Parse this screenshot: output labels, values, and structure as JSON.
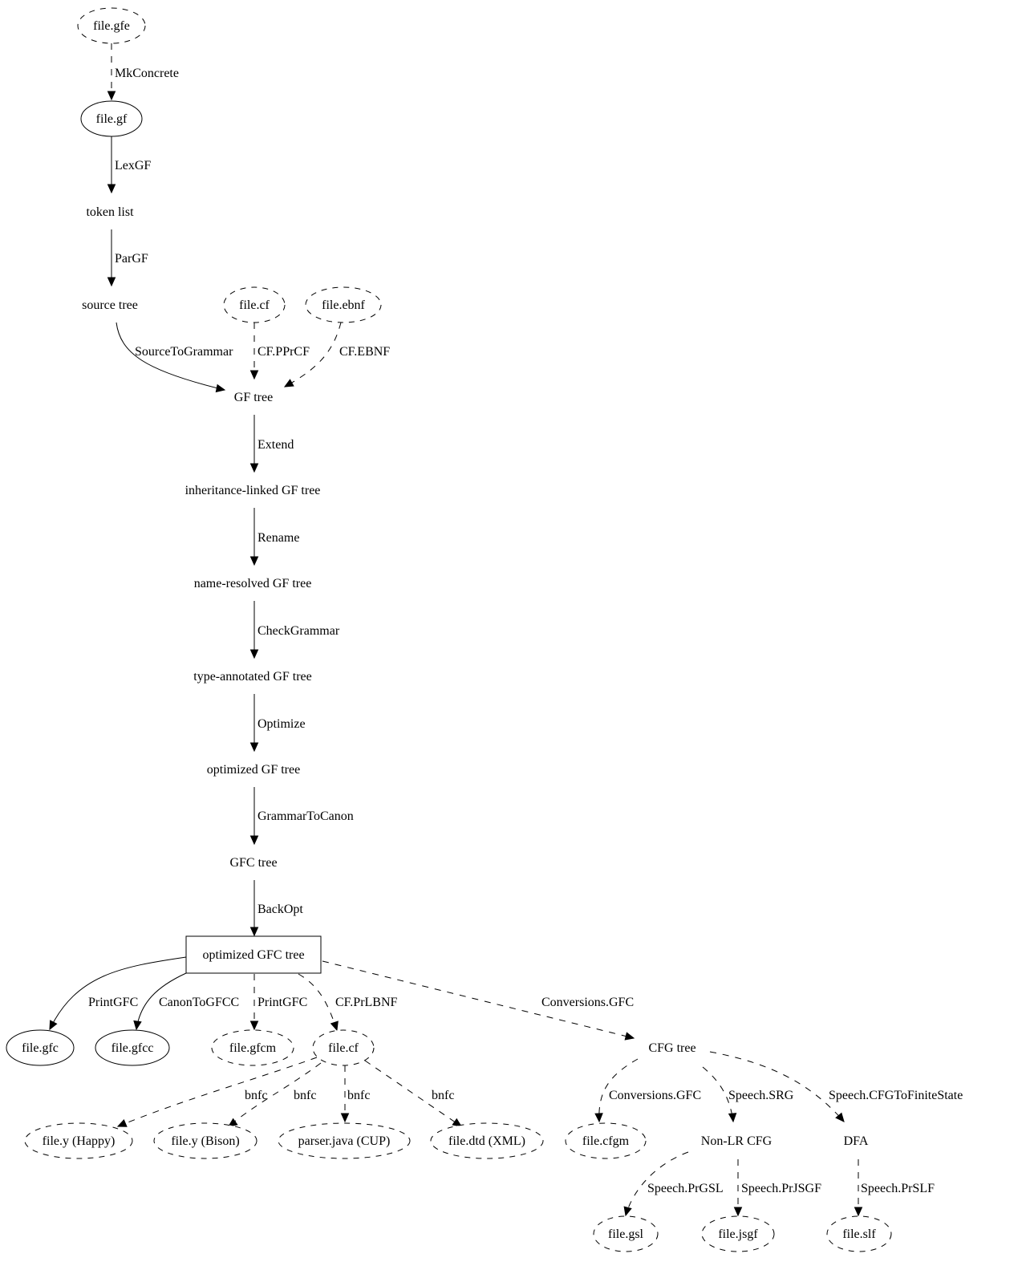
{
  "nodes": [
    {
      "id": "gfe",
      "label": "file.gfe",
      "shape": "ellipse",
      "dashed": true
    },
    {
      "id": "gf",
      "label": "file.gf",
      "shape": "ellipse",
      "dashed": false
    },
    {
      "id": "tokens",
      "label": "token list",
      "shape": "plain"
    },
    {
      "id": "source",
      "label": "source tree",
      "shape": "plain"
    },
    {
      "id": "cf_in",
      "label": "file.cf",
      "shape": "ellipse",
      "dashed": true
    },
    {
      "id": "ebnf",
      "label": "file.ebnf",
      "shape": "ellipse",
      "dashed": true
    },
    {
      "id": "gftree",
      "label": "GF tree",
      "shape": "plain"
    },
    {
      "id": "inh",
      "label": "inheritance-linked GF tree",
      "shape": "plain"
    },
    {
      "id": "named",
      "label": "name-resolved GF tree",
      "shape": "plain"
    },
    {
      "id": "typed",
      "label": "type-annotated GF tree",
      "shape": "plain"
    },
    {
      "id": "optgf",
      "label": "optimized GF tree",
      "shape": "plain"
    },
    {
      "id": "gfc",
      "label": "GFC tree",
      "shape": "plain"
    },
    {
      "id": "optgfc",
      "label": "optimized GFC tree",
      "shape": "box"
    },
    {
      "id": "fgfc",
      "label": "file.gfc",
      "shape": "ellipse",
      "dashed": false
    },
    {
      "id": "fgfcc",
      "label": "file.gfcc",
      "shape": "ellipse",
      "dashed": false
    },
    {
      "id": "fgfcm",
      "label": "file.gfcm",
      "shape": "ellipse",
      "dashed": true
    },
    {
      "id": "cf_out",
      "label": "file.cf",
      "shape": "ellipse",
      "dashed": true
    },
    {
      "id": "cfg",
      "label": "CFG tree",
      "shape": "plain"
    },
    {
      "id": "happy",
      "label": "file.y (Happy)",
      "shape": "ellipse",
      "dashed": true
    },
    {
      "id": "bison",
      "label": "file.y (Bison)",
      "shape": "ellipse",
      "dashed": true
    },
    {
      "id": "cup",
      "label": "parser.java (CUP)",
      "shape": "ellipse",
      "dashed": true
    },
    {
      "id": "dtd",
      "label": "file.dtd (XML)",
      "shape": "ellipse",
      "dashed": true
    },
    {
      "id": "cfgm",
      "label": "file.cfgm",
      "shape": "ellipse",
      "dashed": true
    },
    {
      "id": "nonlr",
      "label": "Non-LR CFG",
      "shape": "plain"
    },
    {
      "id": "dfa",
      "label": "DFA",
      "shape": "plain"
    },
    {
      "id": "gsl",
      "label": "file.gsl",
      "shape": "ellipse",
      "dashed": true
    },
    {
      "id": "jsgf",
      "label": "file.jsgf",
      "shape": "ellipse",
      "dashed": true
    },
    {
      "id": "slf",
      "label": "file.slf",
      "shape": "ellipse",
      "dashed": true
    }
  ],
  "edges": [
    {
      "from": "gfe",
      "to": "gf",
      "label": "MkConcrete",
      "dashed": true
    },
    {
      "from": "gf",
      "to": "tokens",
      "label": "LexGF",
      "dashed": false
    },
    {
      "from": "tokens",
      "to": "source",
      "label": "ParGF",
      "dashed": false
    },
    {
      "from": "source",
      "to": "gftree",
      "label": "SourceToGrammar",
      "dashed": false
    },
    {
      "from": "cf_in",
      "to": "gftree",
      "label": "CF.PPrCF",
      "dashed": true
    },
    {
      "from": "ebnf",
      "to": "gftree",
      "label": "CF.EBNF",
      "dashed": true
    },
    {
      "from": "gftree",
      "to": "inh",
      "label": "Extend",
      "dashed": false
    },
    {
      "from": "inh",
      "to": "named",
      "label": "Rename",
      "dashed": false
    },
    {
      "from": "named",
      "to": "typed",
      "label": "CheckGrammar",
      "dashed": false
    },
    {
      "from": "typed",
      "to": "optgf",
      "label": "Optimize",
      "dashed": false
    },
    {
      "from": "optgf",
      "to": "gfc",
      "label": "GrammarToCanon",
      "dashed": false
    },
    {
      "from": "gfc",
      "to": "optgfc",
      "label": "BackOpt",
      "dashed": false
    },
    {
      "from": "optgfc",
      "to": "fgfc",
      "label": "PrintGFC",
      "dashed": false
    },
    {
      "from": "optgfc",
      "to": "fgfcc",
      "label": "CanonToGFCC",
      "dashed": false
    },
    {
      "from": "optgfc",
      "to": "fgfcm",
      "label": "PrintGFC",
      "dashed": true
    },
    {
      "from": "optgfc",
      "to": "cf_out",
      "label": "CF.PrLBNF",
      "dashed": true
    },
    {
      "from": "optgfc",
      "to": "cfg",
      "label": "Conversions.GFC",
      "dashed": true
    },
    {
      "from": "cf_out",
      "to": "happy",
      "label": "bnfc",
      "dashed": true
    },
    {
      "from": "cf_out",
      "to": "bison",
      "label": "bnfc",
      "dashed": true
    },
    {
      "from": "cf_out",
      "to": "cup",
      "label": "bnfc",
      "dashed": true
    },
    {
      "from": "cf_out",
      "to": "dtd",
      "label": "bnfc",
      "dashed": true
    },
    {
      "from": "cfg",
      "to": "cfgm",
      "label": "Conversions.GFC",
      "dashed": true
    },
    {
      "from": "cfg",
      "to": "nonlr",
      "label": "Speech.SRG",
      "dashed": true
    },
    {
      "from": "cfg",
      "to": "dfa",
      "label": "Speech.CFGToFiniteState",
      "dashed": true
    },
    {
      "from": "nonlr",
      "to": "gsl",
      "label": "Speech.PrGSL",
      "dashed": true
    },
    {
      "from": "nonlr",
      "to": "jsgf",
      "label": "Speech.PrJSGF",
      "dashed": true
    },
    {
      "from": "dfa",
      "to": "slf",
      "label": "Speech.PrSLF",
      "dashed": true
    }
  ]
}
